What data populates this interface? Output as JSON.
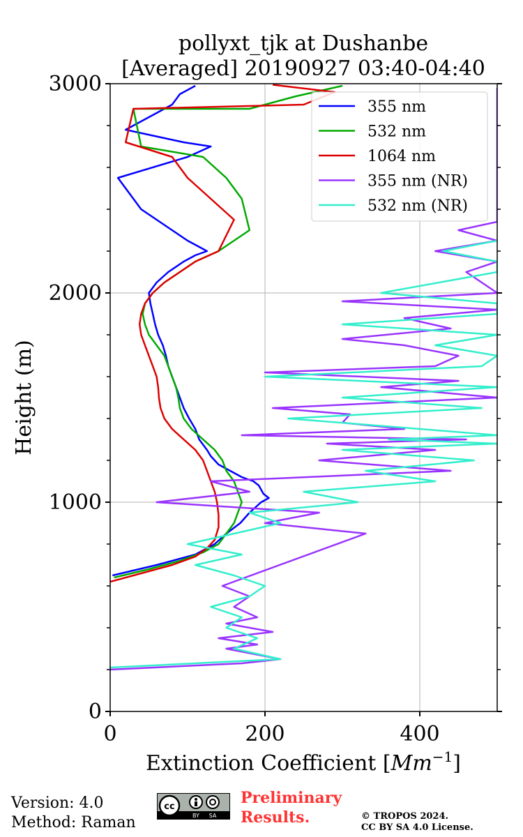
{
  "chart_data": {
    "type": "line",
    "title_line1": "pollyxt_tjk at Dushanbe",
    "title_line2": "[Averaged] 20190927 03:40-04:40",
    "xlabel": "Extinction Coefficient [",
    "xlabel_unit": "Mm",
    "xlabel_exp": "−1",
    "xlabel_close": "]",
    "ylabel": "Height (m)",
    "xlim": [
      0,
      500
    ],
    "ylim": [
      0,
      3000
    ],
    "xticks": [
      0,
      200,
      400
    ],
    "xtick_labels": [
      "0",
      "200",
      "400"
    ],
    "yticks": [
      0,
      1000,
      2000,
      3000
    ],
    "ytick_labels": [
      "0",
      "1000",
      "2000",
      "3000"
    ],
    "grid": true,
    "legend_position": "top-right",
    "series": [
      {
        "name": "355 nm",
        "color": "#0000ff",
        "x": [
          3,
          60,
          110,
          135,
          150,
          168,
          180,
          195,
          205,
          198,
          192,
          185,
          170,
          155,
          140,
          130,
          125,
          115,
          110,
          102,
          95,
          90,
          85,
          80,
          75,
          72,
          68,
          62,
          58,
          55,
          52,
          50,
          60,
          75,
          95,
          110,
          125,
          100,
          80,
          60,
          40,
          10,
          100,
          130,
          95,
          20,
          80,
          90,
          110
        ],
        "y": [
          650,
          700,
          750,
          800,
          850,
          900,
          950,
          1000,
          1020,
          1040,
          1080,
          1100,
          1120,
          1150,
          1180,
          1220,
          1250,
          1300,
          1350,
          1400,
          1450,
          1500,
          1550,
          1600,
          1650,
          1700,
          1750,
          1800,
          1850,
          1900,
          1950,
          2000,
          2050,
          2100,
          2150,
          2180,
          2200,
          2250,
          2300,
          2350,
          2400,
          2550,
          2650,
          2700,
          2720,
          2780,
          2900,
          2950,
          2990
        ]
      },
      {
        "name": "532 nm",
        "color": "#00aa00",
        "x": [
          5,
          50,
          90,
          120,
          140,
          150,
          160,
          165,
          170,
          165,
          160,
          150,
          145,
          135,
          120,
          105,
          95,
          90,
          88,
          85,
          80,
          75,
          70,
          60,
          50,
          45,
          42,
          45,
          55,
          70,
          90,
          110,
          140,
          180,
          170,
          150,
          120,
          40,
          30,
          180,
          240,
          300
        ],
        "y": [
          640,
          680,
          720,
          760,
          800,
          850,
          900,
          950,
          1000,
          1050,
          1100,
          1150,
          1200,
          1250,
          1300,
          1350,
          1400,
          1450,
          1500,
          1550,
          1600,
          1650,
          1700,
          1750,
          1800,
          1850,
          1900,
          1950,
          2000,
          2050,
          2100,
          2150,
          2200,
          2300,
          2450,
          2550,
          2650,
          2700,
          2880,
          2880,
          2940,
          2990
        ]
      },
      {
        "name": "1064 nm",
        "color": "#dd0000",
        "x": [
          0,
          40,
          80,
          110,
          125,
          135,
          140,
          140,
          138,
          135,
          130,
          125,
          120,
          110,
          95,
          80,
          70,
          65,
          63,
          62,
          60,
          55,
          50,
          45,
          40,
          38,
          40,
          45,
          55,
          70,
          90,
          110,
          140,
          160,
          130,
          100,
          80,
          20,
          30,
          250,
          290,
          210
        ],
        "y": [
          620,
          660,
          700,
          740,
          780,
          820,
          880,
          940,
          1000,
          1050,
          1100,
          1150,
          1200,
          1250,
          1300,
          1350,
          1400,
          1450,
          1500,
          1550,
          1600,
          1650,
          1700,
          1750,
          1800,
          1850,
          1900,
          1950,
          2000,
          2050,
          2100,
          2150,
          2200,
          2350,
          2450,
          2550,
          2650,
          2720,
          2880,
          2900,
          2960,
          2995
        ]
      },
      {
        "name": "355 nm (NR)",
        "color": "#9933ff",
        "x": [
          0,
          170,
          220,
          150,
          190,
          140,
          210,
          150,
          190,
          160,
          180,
          145,
          330,
          200,
          270,
          60,
          180,
          130,
          440,
          270,
          420,
          280,
          460,
          170,
          380,
          300,
          310,
          210,
          500,
          350,
          450,
          200,
          420,
          450,
          380,
          300,
          440,
          380,
          500,
          300,
          500,
          460,
          500,
          420,
          500,
          450,
          500,
          500,
          500,
          500
        ],
        "y": [
          200,
          230,
          250,
          300,
          320,
          350,
          380,
          420,
          450,
          500,
          550,
          600,
          850,
          900,
          950,
          1000,
          1050,
          1100,
          1150,
          1200,
          1250,
          1280,
          1300,
          1320,
          1350,
          1380,
          1420,
          1450,
          1500,
          1550,
          1580,
          1620,
          1650,
          1700,
          1750,
          1780,
          1830,
          1880,
          1920,
          1960,
          2000,
          2100,
          2150,
          2200,
          2250,
          2300,
          2340,
          2650,
          2780,
          2980
        ]
      },
      {
        "name": "532 nm (NR)",
        "color": "#33eecc",
        "x": [
          0,
          220,
          160,
          190,
          150,
          170,
          130,
          180,
          200,
          160,
          110,
          170,
          100,
          220,
          180,
          320,
          250,
          420,
          330,
          470,
          300,
          500,
          360,
          500,
          400,
          230,
          480,
          300,
          500,
          200,
          480,
          500,
          420,
          500,
          300,
          500,
          500,
          350,
          500,
          500,
          430,
          500
        ],
        "y": [
          210,
          250,
          300,
          350,
          400,
          450,
          500,
          550,
          600,
          650,
          700,
          750,
          800,
          900,
          950,
          1000,
          1050,
          1100,
          1150,
          1200,
          1250,
          1280,
          1300,
          1320,
          1350,
          1400,
          1450,
          1500,
          1550,
          1600,
          1650,
          1700,
          1750,
          1800,
          1850,
          1900,
          1950,
          2000,
          2100,
          2150,
          2200,
          2250
        ]
      }
    ]
  },
  "footer": {
    "version_line": "Version: 4.0",
    "method_line": "Method: Raman",
    "preliminary_line1": "Preliminary",
    "preliminary_line2": "Results.",
    "copyright_line1": "© TROPOS 2024.",
    "copyright_line2": "CC BY SA 4.0 License.",
    "license_badge_text": [
      "cc",
      "BY",
      "SA"
    ]
  }
}
